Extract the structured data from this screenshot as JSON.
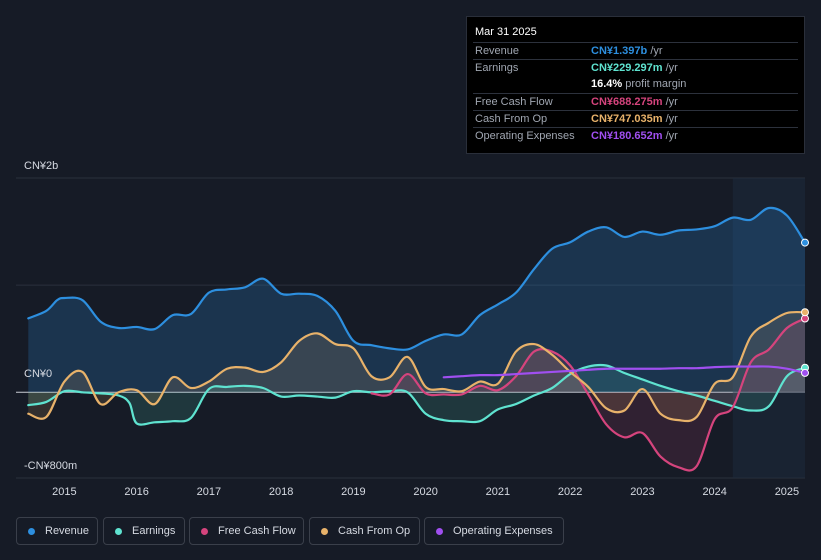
{
  "chart_data": {
    "type": "area",
    "title": "",
    "xlabel": "",
    "ylabel": "",
    "ylim": [
      -800,
      2000
    ],
    "y_axis_labels": [
      "CN¥2b",
      "CN¥0",
      "-CN¥800m"
    ],
    "x_tick_labels": [
      "2015",
      "2016",
      "2017",
      "2018",
      "2019",
      "2020",
      "2021",
      "2022",
      "2023",
      "2024",
      "2025"
    ],
    "x_ticks": [
      2015,
      2016,
      2017,
      2018,
      2019,
      2020,
      2021,
      2022,
      2023,
      2024,
      2025
    ],
    "xlim": [
      2014.33,
      2025.25
    ],
    "forecast_start": 2024.25,
    "series": [
      {
        "name": "Revenue",
        "color": "#2d8fdf",
        "x": [
          2014.5,
          2014.75,
          2014.9,
          2015.0,
          2015.25,
          2015.5,
          2015.75,
          2016.0,
          2016.25,
          2016.5,
          2016.75,
          2017.0,
          2017.25,
          2017.5,
          2017.75,
          2018.0,
          2018.25,
          2018.5,
          2018.75,
          2019.0,
          2019.25,
          2019.5,
          2019.75,
          2020.0,
          2020.25,
          2020.5,
          2020.75,
          2021.0,
          2021.25,
          2021.5,
          2021.75,
          2022.0,
          2022.25,
          2022.5,
          2022.75,
          2023.0,
          2023.25,
          2023.5,
          2023.75,
          2024.0,
          2024.25,
          2024.5,
          2024.75,
          2025.0,
          2025.25
        ],
        "values": [
          690,
          760,
          860,
          880,
          860,
          660,
          600,
          610,
          590,
          720,
          730,
          930,
          960,
          980,
          1060,
          920,
          920,
          900,
          760,
          480,
          440,
          410,
          400,
          480,
          540,
          540,
          720,
          820,
          930,
          1150,
          1340,
          1400,
          1500,
          1540,
          1450,
          1500,
          1470,
          1510,
          1520,
          1550,
          1630,
          1610,
          1720,
          1650,
          1397
        ]
      },
      {
        "name": "Earnings",
        "color": "#5fe3d0",
        "x": [
          2014.5,
          2014.75,
          2015.0,
          2015.25,
          2015.5,
          2015.75,
          2015.9,
          2016.0,
          2016.25,
          2016.5,
          2016.75,
          2017.0,
          2017.25,
          2017.5,
          2017.75,
          2018.0,
          2018.25,
          2018.5,
          2018.75,
          2019.0,
          2019.25,
          2019.5,
          2019.75,
          2020.0,
          2020.25,
          2020.5,
          2020.75,
          2021.0,
          2021.25,
          2021.5,
          2021.75,
          2022.0,
          2022.25,
          2022.5,
          2022.75,
          2023.0,
          2023.25,
          2023.5,
          2023.75,
          2024.0,
          2024.25,
          2024.5,
          2024.75,
          2025.0,
          2025.25
        ],
        "values": [
          -120,
          -90,
          10,
          0,
          -10,
          -30,
          -100,
          -290,
          -280,
          -270,
          -240,
          30,
          50,
          60,
          40,
          -40,
          -30,
          -40,
          -50,
          10,
          0,
          10,
          0,
          -200,
          -260,
          -270,
          -270,
          -160,
          -110,
          -30,
          40,
          170,
          240,
          250,
          180,
          120,
          60,
          10,
          -30,
          -80,
          -130,
          -170,
          -130,
          150,
          229.297
        ]
      },
      {
        "name": "Free Cash Flow",
        "color": "#d5447d",
        "x": [
          2019.25,
          2019.5,
          2019.75,
          2020.0,
          2020.25,
          2020.5,
          2020.75,
          2021.0,
          2021.25,
          2021.5,
          2021.75,
          2022.0,
          2022.25,
          2022.5,
          2022.75,
          2023.0,
          2023.25,
          2023.5,
          2023.75,
          2024.0,
          2024.25,
          2024.5,
          2024.75,
          2025.0,
          2025.25
        ],
        "values": [
          -10,
          -20,
          170,
          -10,
          -20,
          -20,
          60,
          20,
          150,
          380,
          380,
          250,
          -20,
          -300,
          -420,
          -380,
          -600,
          -700,
          -690,
          -250,
          -140,
          280,
          400,
          600,
          688.275
        ]
      },
      {
        "name": "Cash From Op",
        "color": "#e8b26a",
        "x": [
          2014.5,
          2014.75,
          2015.0,
          2015.25,
          2015.5,
          2015.75,
          2016.0,
          2016.25,
          2016.5,
          2016.75,
          2017.0,
          2017.25,
          2017.5,
          2017.75,
          2018.0,
          2018.25,
          2018.5,
          2018.75,
          2019.0,
          2019.25,
          2019.5,
          2019.75,
          2020.0,
          2020.25,
          2020.5,
          2020.75,
          2021.0,
          2021.25,
          2021.5,
          2021.75,
          2022.0,
          2022.25,
          2022.5,
          2022.75,
          2023.0,
          2023.25,
          2023.5,
          2023.75,
          2024.0,
          2024.25,
          2024.5,
          2024.75,
          2025.0,
          2025.25
        ],
        "values": [
          -200,
          -230,
          100,
          190,
          -110,
          0,
          20,
          -110,
          140,
          40,
          100,
          220,
          230,
          190,
          280,
          480,
          550,
          450,
          410,
          150,
          140,
          330,
          50,
          30,
          10,
          100,
          80,
          380,
          450,
          350,
          190,
          50,
          -150,
          -170,
          30,
          -200,
          -260,
          -230,
          80,
          140,
          520,
          650,
          740,
          747.035
        ]
      },
      {
        "name": "Operating Expenses",
        "color": "#a04ff0",
        "x": [
          2020.25,
          2020.5,
          2020.75,
          2021.0,
          2021.25,
          2021.5,
          2021.75,
          2022.0,
          2022.25,
          2022.5,
          2022.75,
          2023.0,
          2023.25,
          2023.5,
          2023.75,
          2024.0,
          2024.25,
          2024.5,
          2024.75,
          2025.0,
          2025.25
        ],
        "values": [
          140,
          150,
          160,
          160,
          170,
          180,
          190,
          200,
          210,
          220,
          220,
          220,
          220,
          225,
          225,
          235,
          240,
          240,
          240,
          220,
          180.652
        ]
      }
    ]
  },
  "tooltip": {
    "date": "Mar 31 2025",
    "rows": [
      {
        "label": "Revenue",
        "value": "CN¥1.397b",
        "unit": " /yr",
        "color": "#2d8fdf"
      },
      {
        "label": "Earnings",
        "value": "CN¥229.297m",
        "unit": " /yr",
        "color": "#5fe3d0"
      },
      {
        "label": "",
        "value": "16.4%",
        "unit": " profit margin",
        "color": "#ffffff"
      },
      {
        "label": "Free Cash Flow",
        "value": "CN¥688.275m",
        "unit": " /yr",
        "color": "#d5447d"
      },
      {
        "label": "Cash From Op",
        "value": "CN¥747.035m",
        "unit": " /yr",
        "color": "#e8b26a"
      },
      {
        "label": "Operating Expenses",
        "value": "CN¥180.652m",
        "unit": " /yr",
        "color": "#a04ff0"
      }
    ]
  },
  "legend": [
    {
      "label": "Revenue",
      "color": "#2d8fdf"
    },
    {
      "label": "Earnings",
      "color": "#5fe3d0"
    },
    {
      "label": "Free Cash Flow",
      "color": "#d5447d"
    },
    {
      "label": "Cash From Op",
      "color": "#e8b26a"
    },
    {
      "label": "Operating Expenses",
      "color": "#a04ff0"
    }
  ]
}
